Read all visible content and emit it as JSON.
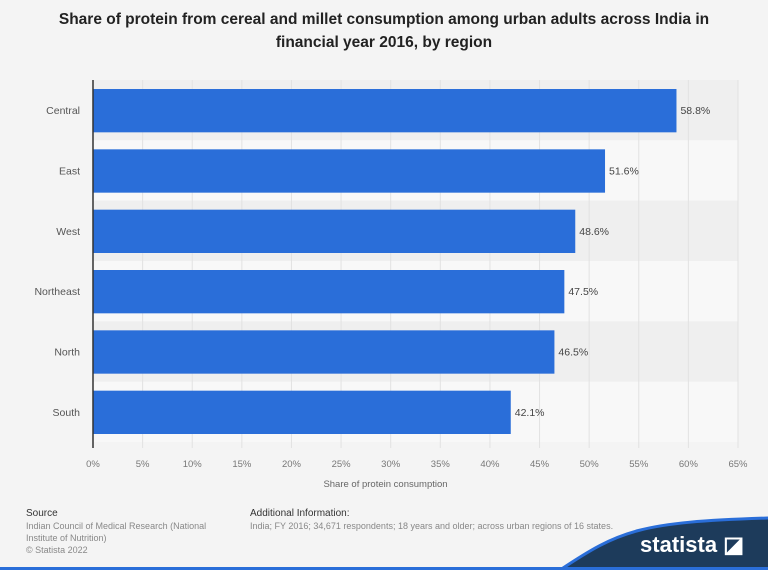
{
  "chart_data": {
    "type": "bar",
    "orientation": "horizontal",
    "title": "Share of protein from cereal and millet consumption among urban adults across India in financial year 2016, by region",
    "categories": [
      "Central",
      "East",
      "West",
      "Northeast",
      "North",
      "South"
    ],
    "values": [
      58.8,
      51.6,
      48.6,
      47.5,
      46.5,
      42.1
    ],
    "data_labels": [
      "58.8%",
      "51.6%",
      "48.6%",
      "47.5%",
      "46.5%",
      "42.1%"
    ],
    "xlabel": "Share of protein consumption",
    "ylabel": "",
    "xlim": [
      0,
      65
    ],
    "xticks": [
      "0%",
      "5%",
      "10%",
      "15%",
      "20%",
      "25%",
      "30%",
      "35%",
      "40%",
      "45%",
      "50%",
      "55%",
      "60%",
      "65%"
    ],
    "grid": true,
    "bar_color": "#2a6ed9"
  },
  "footer": {
    "source_label": "Source",
    "source": "Indian Council of Medical Research (National Institute of Nutrition)",
    "copyright": "© Statista 2022",
    "info_label": "Additional Information:",
    "info": "India; FY 2016; 34,671 respondents; 18 years and older; across urban regions of 16 states.",
    "logo": "statista"
  }
}
